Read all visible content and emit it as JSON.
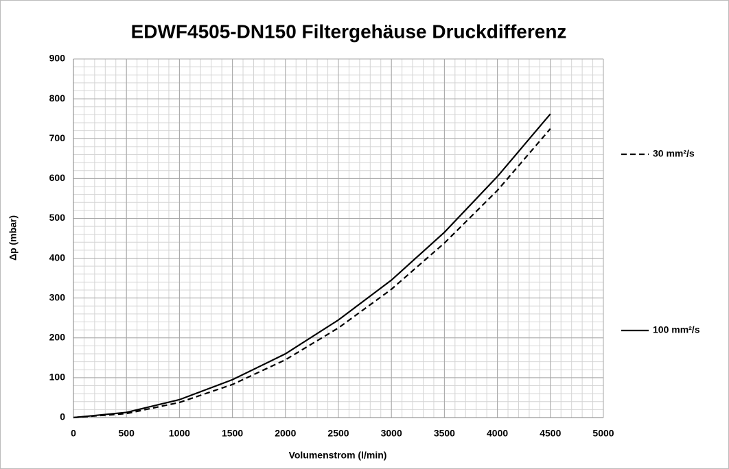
{
  "chart_data": {
    "type": "line",
    "title": "EDWF4505-DN150 Filtergehäuse Druckdifferenz",
    "x_label": "Volumenstrom (l/min)",
    "y_label": "Δp (mbar)",
    "x": [
      0,
      500,
      1000,
      1500,
      2000,
      2500,
      3000,
      3500,
      4000,
      4500
    ],
    "series": [
      {
        "name": "30 mm²/s",
        "color": "#000000",
        "dash": true,
        "values": [
          0,
          10,
          38,
          83,
          145,
          225,
          322,
          438,
          570,
          725
        ]
      },
      {
        "name": "100 mm²/s",
        "color": "#000000",
        "dash": false,
        "values": [
          0,
          13,
          45,
          95,
          160,
          245,
          345,
          465,
          605,
          762
        ]
      }
    ],
    "xlim": [
      0,
      5000
    ],
    "xticks": [
      0,
      500,
      1000,
      1500,
      2000,
      2500,
      3000,
      3500,
      4000,
      4500,
      5000
    ],
    "ylim": [
      0,
      900
    ],
    "yticks": [
      0,
      100,
      200,
      300,
      400,
      500,
      600,
      700,
      800,
      900
    ],
    "grid": true,
    "x_minor_step": 100,
    "y_minor_step": 20,
    "legend": "right"
  }
}
